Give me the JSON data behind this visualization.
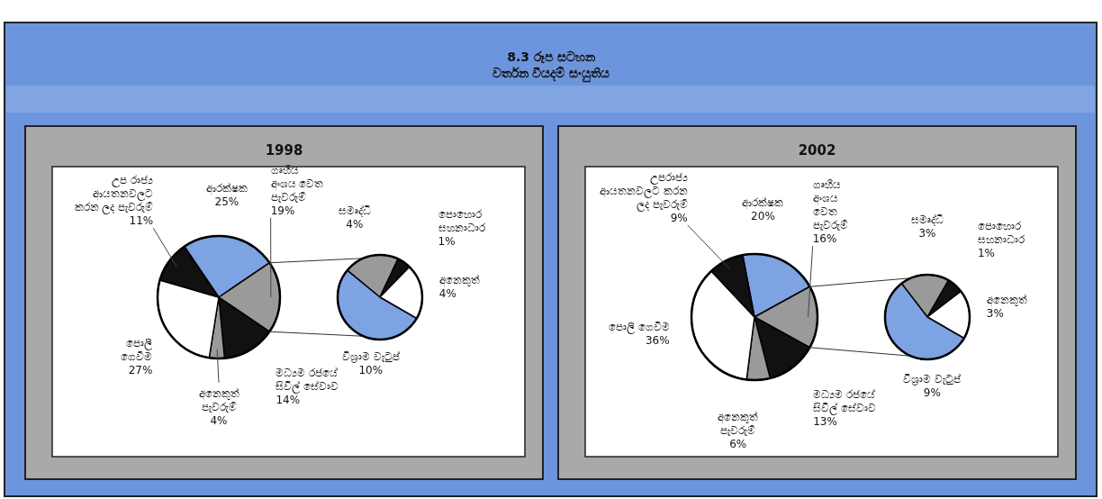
{
  "chart_data": [
    {
      "type": "other",
      "title": "8.3 රූප සටහන",
      "subtitle": "වර්තන වියදම් සංයුතිය"
    },
    {
      "type": "pie",
      "title": "1998",
      "categories": [
        "ආරක්ෂක",
        "ගෘහීය\nඅංශය වෙත\nපැවරුම්",
        "මධ්‍යම රජයේ\nසිවිල් සේවාව",
        "අනෙකුත්\nපැවරුම්",
        "පොලී\nගෙවීම",
        "උප රාජ්‍ය\nආයතනවලට\nකරන ලද පැවරුම්"
      ],
      "values": [
        25,
        19,
        14,
        4,
        27,
        11
      ],
      "value_labels": [
        "25%",
        "19%",
        "14%",
        "4%",
        "27%",
        "11%"
      ],
      "colors": [
        "#7ea3e3",
        "#9a9a9a",
        "#111111",
        "#9a9a9a",
        "#ffffff",
        "#111111"
      ]
    },
    {
      "type": "pie",
      "categories": [
        "සමෘද්ධි",
        "පොහොර\nසහනාධාර",
        "අනෙකුත්",
        "විශ්‍රාම වැටුප්"
      ],
      "values": [
        4,
        1,
        4,
        10
      ],
      "value_labels": [
        "4%",
        "1%",
        "4%",
        "10%"
      ],
      "colors": [
        "#9a9a9a",
        "#111111",
        "#ffffff",
        "#7ea3e3"
      ]
    },
    {
      "type": "pie",
      "title": "2002",
      "categories": [
        "ආරක්ෂක",
        "ගෘහීය\nඅංශය\nවෙත\nපැවරුම්",
        "මධ්‍යම රජයේ\nසිවිල් සේවාව",
        "අනෙකුත්\nපැවරුම්",
        "පොලී ගෙවීම",
        "උපරාජ්‍ය\nආයතනවලට කරන\nලද පැවරුම්"
      ],
      "values": [
        20,
        16,
        13,
        6,
        36,
        9
      ],
      "value_labels": [
        "20%",
        "16%",
        "13%",
        "6%",
        "36%",
        "9%"
      ],
      "colors": [
        "#7ea3e3",
        "#9a9a9a",
        "#111111",
        "#9a9a9a",
        "#ffffff",
        "#111111"
      ]
    },
    {
      "type": "pie",
      "categories": [
        "සමෘද්ධි",
        "පොහොර\nසහනාධාර",
        "අනෙකුත්",
        "විශ්‍රාම වැටුප්"
      ],
      "values": [
        3,
        1,
        3,
        9
      ],
      "value_labels": [
        "3%",
        "1%",
        "3%",
        "9%"
      ],
      "colors": [
        "#9a9a9a",
        "#111111",
        "#ffffff",
        "#7ea3e3"
      ]
    }
  ]
}
